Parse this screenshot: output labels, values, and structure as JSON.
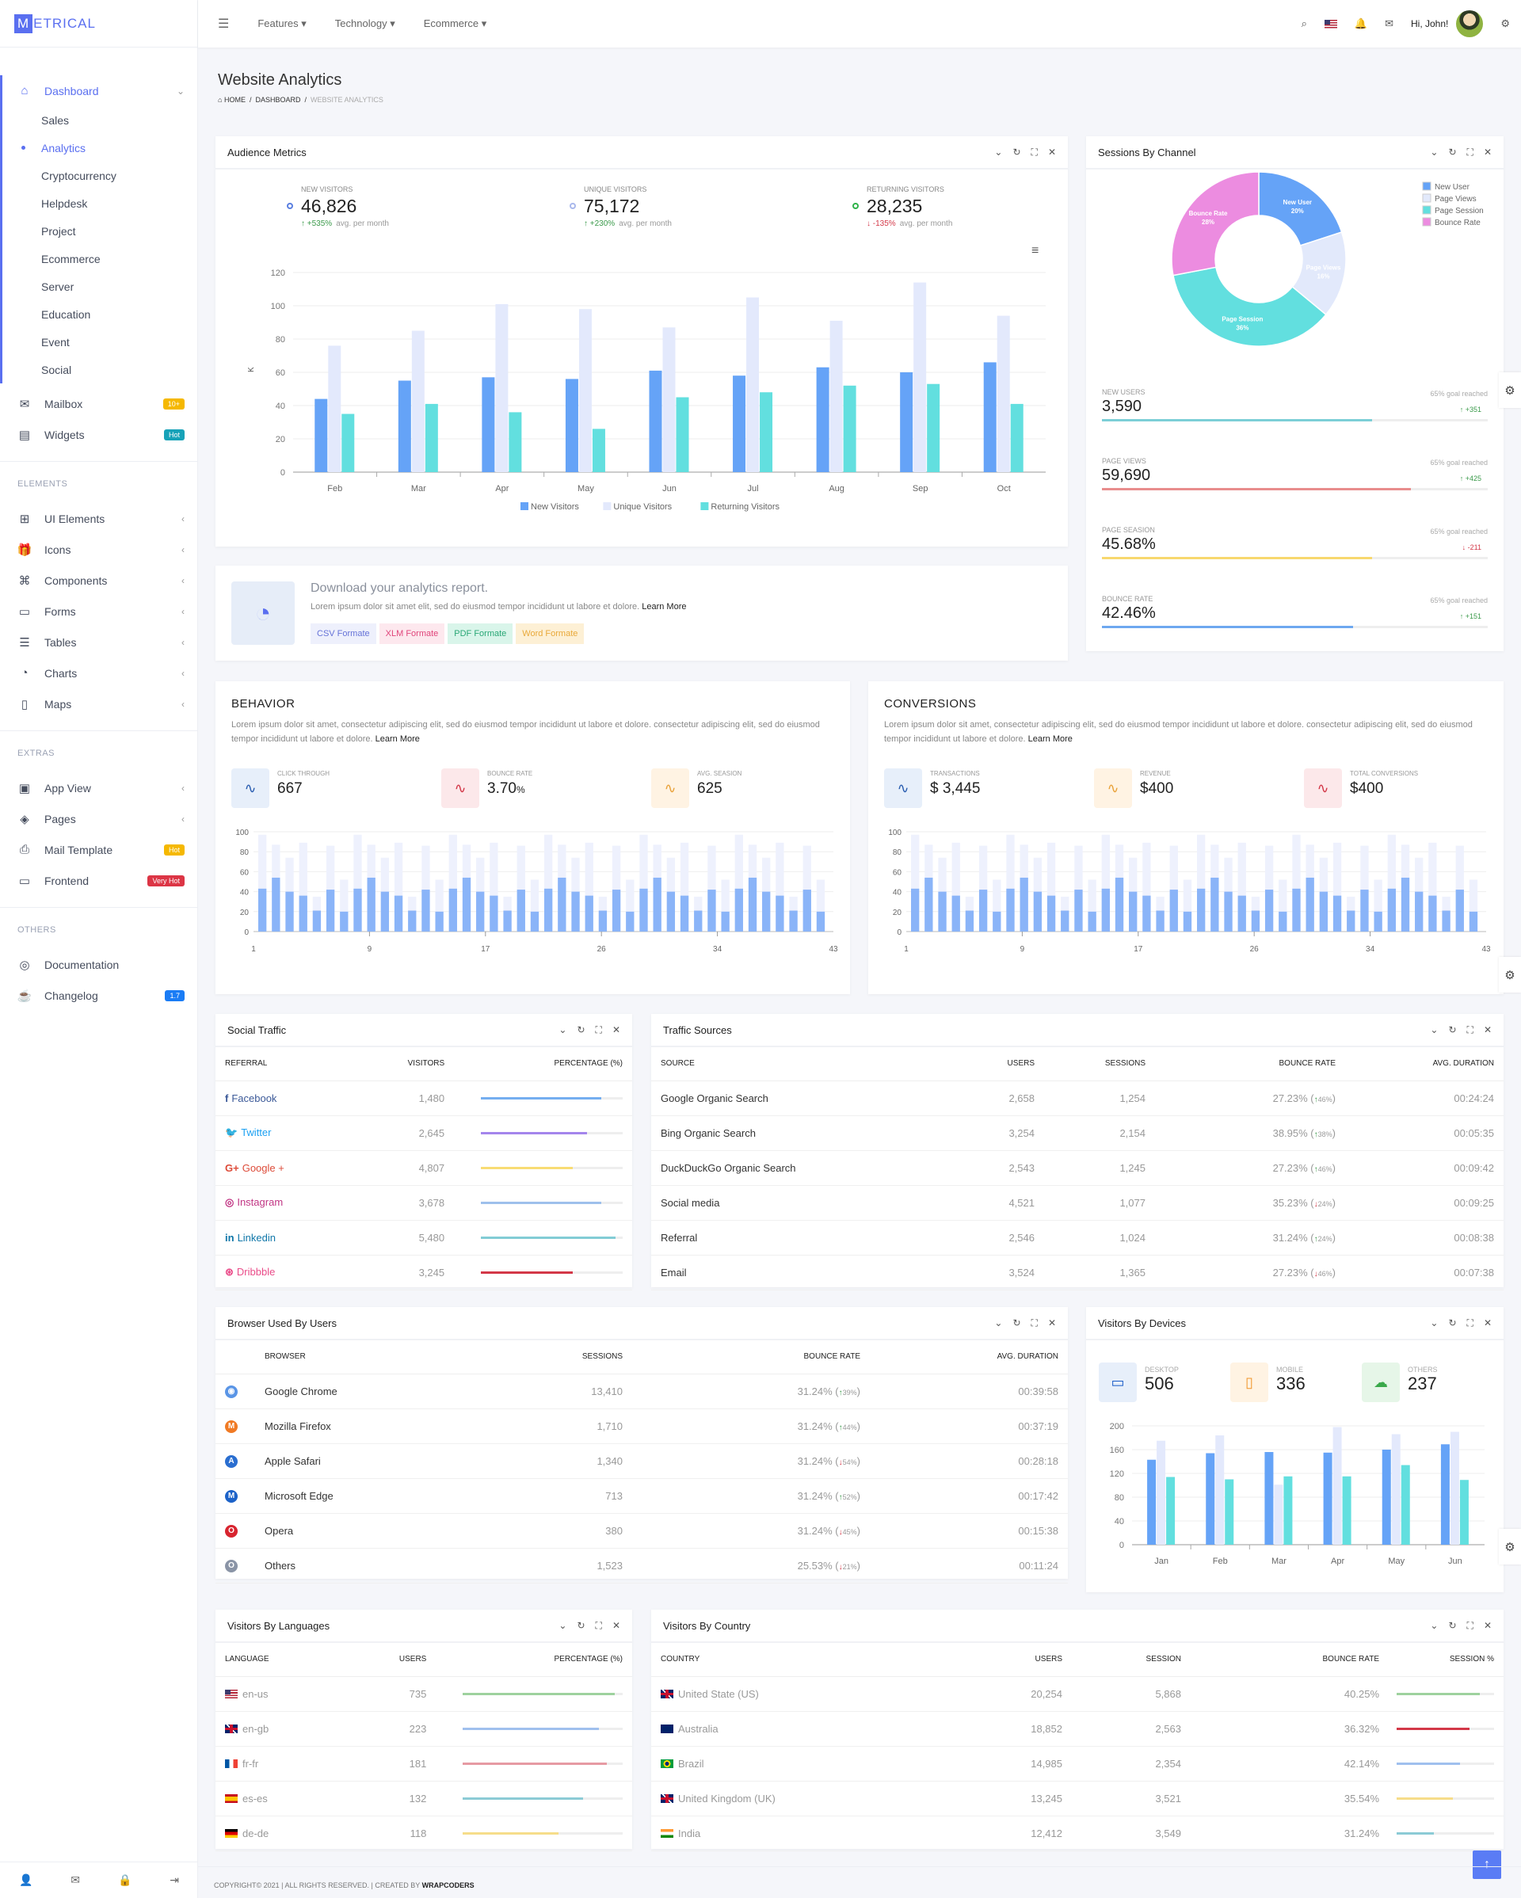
{
  "brand": {
    "logo_letter": "M",
    "logo_rest": "ETRICAL",
    "accent": "#5a6ff0"
  },
  "header": {
    "nav": [
      "Features",
      "Technology",
      "Ecommerce"
    ],
    "greeting": "Hi, John!"
  },
  "sidebar": {
    "dashboard": {
      "label": "Dashboard",
      "sub": [
        "Sales",
        "Analytics",
        "Cryptocurrency",
        "Helpdesk",
        "Project",
        "Ecommerce",
        "Server",
        "Education",
        "Event",
        "Social"
      ],
      "active_sub": 1
    },
    "top": [
      {
        "label": "Mailbox",
        "icon": "mail-icon",
        "badge": "10+",
        "badge_color": "#f5b800"
      },
      {
        "label": "Widgets",
        "icon": "layout-icon",
        "badge": "Hot",
        "badge_color": "#17a2b8"
      }
    ],
    "sections": [
      {
        "label": "ELEMENTS",
        "items": [
          {
            "label": "UI Elements",
            "icon": "grid-icon"
          },
          {
            "label": "Icons",
            "icon": "gift-icon"
          },
          {
            "label": "Components",
            "icon": "command-icon"
          },
          {
            "label": "Forms",
            "icon": "calendar-icon"
          },
          {
            "label": "Tables",
            "icon": "database-icon"
          },
          {
            "label": "Charts",
            "icon": "pie-chart-icon"
          },
          {
            "label": "Maps",
            "icon": "map-icon"
          }
        ]
      },
      {
        "label": "EXTRAS",
        "items": [
          {
            "label": "App View",
            "icon": "cpu-icon"
          },
          {
            "label": "Pages",
            "icon": "codepen-icon"
          },
          {
            "label": "Mail Template",
            "icon": "printer-icon",
            "badge": "Hot",
            "badge_color": "#f5b800"
          },
          {
            "label": "Frontend",
            "icon": "monitor-icon",
            "badge": "Very Hot",
            "badge_color": "#dc3545"
          }
        ]
      },
      {
        "label": "OTHERS",
        "items": [
          {
            "label": "Documentation",
            "icon": "life-buoy-icon"
          },
          {
            "label": "Changelog",
            "icon": "coffee-icon",
            "badge": "1.7",
            "badge_color": "#1a7cf5"
          }
        ]
      }
    ]
  },
  "page": {
    "title": "Website Analytics",
    "breadcrumb": [
      "HOME",
      "DASHBOARD",
      "WEBSITE ANALYTICS"
    ]
  },
  "audience": {
    "title": "Audience Metrics",
    "stats": [
      {
        "label": "NEW VISITORS",
        "value": "46,826",
        "change": "+535%",
        "dir": "up",
        "note": "avg. per month",
        "dot": "#5a7fe0"
      },
      {
        "label": "UNIQUE VISITORS",
        "value": "75,172",
        "change": "+230%",
        "dir": "up",
        "note": "avg. per month",
        "dot": "#a9b8ec"
      },
      {
        "label": "RETURNING VISITORS",
        "value": "28,235",
        "change": "-135%",
        "dir": "down",
        "note": "avg. per month",
        "dot": "#2fb34a"
      }
    ]
  },
  "sessions": {
    "title": "Sessions By Channel",
    "stats": [
      {
        "label": "NEW USERS",
        "value": "3,590",
        "goal": "65% goal reached",
        "change": "+351",
        "dir": "up",
        "progress": 0.7,
        "color": "#7ccfd7"
      },
      {
        "label": "PAGE VIEWS",
        "value": "59,690",
        "goal": "65% goal reached",
        "change": "+425",
        "dir": "up",
        "progress": 0.8,
        "color": "#e88d8d"
      },
      {
        "label": "PAGE SEASION",
        "value": "45.68%",
        "goal": "65% goal reached",
        "change": "-211",
        "dir": "down",
        "progress": 0.7,
        "color": "#f8d86e"
      },
      {
        "label": "BOUNCE RATE",
        "value": "42.46%",
        "goal": "65% goal reached",
        "change": "+151",
        "dir": "up",
        "progress": 0.65,
        "color": "#6ea8f0"
      }
    ]
  },
  "download": {
    "title": "Download your analytics report.",
    "text": "Lorem ipsum dolor sit amet elit, sed do eiusmod tempor incididunt ut labore et dolore.",
    "link": "Learn More",
    "buttons": [
      {
        "label": "CSV Formate",
        "bg": "#eef0fc",
        "fg": "#6673d8"
      },
      {
        "label": "XLM Formate",
        "bg": "#fde8ee",
        "fg": "#e0457b"
      },
      {
        "label": "PDF Formate",
        "bg": "#d9f5ea",
        "fg": "#2aa876"
      },
      {
        "label": "Word Formate",
        "bg": "#fdf0d5",
        "fg": "#e9a93a"
      }
    ]
  },
  "behavior": {
    "title": "BEHAVIOR",
    "text": "Lorem ipsum dolor sit amet, consectetur adipiscing elit, sed do eiusmod tempor incididunt ut labore et dolore. consectetur adipiscing elit, sed do eiusmod tempor incididunt ut labore et dolore.",
    "link": "Learn More",
    "stats": [
      {
        "label": "CLICK THROUGH",
        "value": "667",
        "bg": "#e7effa",
        "fg": "#2a5db0"
      },
      {
        "label": "BOUNCE RATE",
        "value": "3.70",
        "unit": "%",
        "bg": "#fce8ea",
        "fg": "#d33848"
      },
      {
        "label": "AVG. SEASION",
        "value": "625",
        "bg": "#fff3e3",
        "fg": "#e9a23a"
      }
    ]
  },
  "conversions": {
    "title": "CONVERSIONS",
    "text": "Lorem ipsum dolor sit amet, consectetur adipiscing elit, sed do eiusmod tempor incididunt ut labore et dolore. consectetur adipiscing elit, sed do eiusmod tempor incididunt ut labore et dolore.",
    "link": "Learn More",
    "stats": [
      {
        "label": "TRANSACTIONS",
        "value": "$ 3,445",
        "bg": "#e7effa",
        "fg": "#2a5db0"
      },
      {
        "label": "REVENUE",
        "value": "$400",
        "bg": "#fff3e3",
        "fg": "#e9a23a"
      },
      {
        "label": "TOTAL CONVERSIONS",
        "value": "$400",
        "bg": "#fce8ea",
        "fg": "#d33848"
      }
    ]
  },
  "social": {
    "title": "Social Traffic",
    "columns": [
      "REFERRAL",
      "VISITORS",
      "PERCENTAGE (%)"
    ],
    "rows": [
      {
        "name": "Facebook",
        "icon": "facebook-icon",
        "glyph": "f",
        "color": "#3b5998",
        "visitors": "1,480",
        "pct": 85,
        "bar": "#75aef0"
      },
      {
        "name": "Twitter",
        "icon": "twitter-icon",
        "glyph": "🐦",
        "color": "#1da1f2",
        "visitors": "2,645",
        "pct": 75,
        "bar": "#a485ec"
      },
      {
        "name": "Google +",
        "icon": "google-plus-icon",
        "glyph": "G+",
        "color": "#dd4b39",
        "visitors": "4,807",
        "pct": 65,
        "bar": "#f8dc74"
      },
      {
        "name": "Instagram",
        "icon": "instagram-icon",
        "glyph": "◎",
        "color": "#c13584",
        "visitors": "3,678",
        "pct": 85,
        "bar": "#9ec0ec"
      },
      {
        "name": "Linkedin",
        "icon": "linkedin-icon",
        "glyph": "in",
        "color": "#0e76a8",
        "visitors": "5,480",
        "pct": 95,
        "bar": "#82ccd5"
      },
      {
        "name": "Dribbble",
        "icon": "dribbble-icon",
        "glyph": "⊛",
        "color": "#ea4c89",
        "visitors": "3,245",
        "pct": 65,
        "bar": "#d33848"
      }
    ]
  },
  "traffic": {
    "title": "Traffic Sources",
    "columns": [
      "SOURCE",
      "USERS",
      "SESSIONS",
      "BOUNCE RATE",
      "AVG. DURATION"
    ],
    "rows": [
      {
        "source": "Google Organic Search",
        "users": "2,658",
        "sessions": "1,254",
        "bounce": "27.23%",
        "delta": "46%",
        "dir": "up",
        "duration": "00:24:24"
      },
      {
        "source": "Bing Organic Search",
        "users": "3,254",
        "sessions": "2,154",
        "bounce": "38.95%",
        "delta": "38%",
        "dir": "up",
        "duration": "00:05:35"
      },
      {
        "source": "DuckDuckGo Organic Search",
        "users": "2,543",
        "sessions": "1,245",
        "bounce": "27.23%",
        "delta": "46%",
        "dir": "up",
        "duration": "00:09:42"
      },
      {
        "source": "Social media",
        "users": "4,521",
        "sessions": "1,077",
        "bounce": "35.23%",
        "delta": "24%",
        "dir": "down",
        "duration": "00:09:25"
      },
      {
        "source": "Referral",
        "users": "2,546",
        "sessions": "1,024",
        "bounce": "31.24%",
        "delta": "24%",
        "dir": "up",
        "duration": "00:08:38"
      },
      {
        "source": "Email",
        "users": "3,524",
        "sessions": "1,365",
        "bounce": "27.23%",
        "delta": "46%",
        "dir": "down",
        "duration": "00:07:38"
      }
    ]
  },
  "browsers": {
    "title": "Browser Used By Users",
    "columns": [
      "BROWSER",
      "SESSIONS",
      "BOUNCE RATE",
      "AVG. DURATION"
    ],
    "rows": [
      {
        "name": "Google Chrome",
        "icon": "chrome-icon",
        "color": "#5a95e6",
        "sessions": "13,410",
        "bounce": "31.24%",
        "delta": "39%",
        "dir": "up",
        "duration": "00:39:58"
      },
      {
        "name": "Mozilla Firefox",
        "icon": "firefox-icon",
        "color": "#f07a24",
        "sessions": "1,710",
        "bounce": "31.24%",
        "delta": "44%",
        "dir": "up",
        "duration": "00:37:19"
      },
      {
        "name": "Apple Safari",
        "icon": "safari-icon",
        "color": "#2a6ed0",
        "sessions": "1,340",
        "bounce": "31.24%",
        "delta": "54%",
        "dir": "down",
        "duration": "00:28:18"
      },
      {
        "name": "Microsoft Edge",
        "icon": "edge-icon",
        "color": "#1c62c8",
        "sessions": "713",
        "bounce": "31.24%",
        "delta": "52%",
        "dir": "up",
        "duration": "00:17:42"
      },
      {
        "name": "Opera",
        "icon": "opera-icon",
        "color": "#d8242f",
        "sessions": "380",
        "bounce": "31.24%",
        "delta": "45%",
        "dir": "down",
        "duration": "00:15:38"
      },
      {
        "name": "Others",
        "icon": "globe-icon",
        "color": "#8a94a6",
        "sessions": "1,523",
        "bounce": "25.53%",
        "delta": "21%",
        "dir": "down",
        "duration": "00:11:24"
      }
    ]
  },
  "devices": {
    "title": "Visitors By Devices",
    "stats": [
      {
        "label": "DESKTOP",
        "value": "506",
        "icon": "monitor-icon",
        "bg": "#e7effa",
        "fg": "#1a5cc8"
      },
      {
        "label": "MOBILE",
        "value": "336",
        "icon": "smartphone-icon",
        "bg": "#fff3e3",
        "fg": "#f0952a"
      },
      {
        "label": "OTHERS",
        "value": "237",
        "icon": "upload-cloud-icon",
        "bg": "#e6f6e8",
        "fg": "#3aa94a"
      }
    ]
  },
  "languages": {
    "title": "Visitors By Languages",
    "columns": [
      "LANGUAGE",
      "USERS",
      "PERCENTAGE (%)"
    ],
    "rows": [
      {
        "lang": "en-us",
        "flag": "us",
        "users": "735",
        "pct": 95,
        "bar": "#9ed29e"
      },
      {
        "lang": "en-gb",
        "flag": "gb",
        "users": "223",
        "pct": 85,
        "bar": "#a0c0ee"
      },
      {
        "lang": "fr-fr",
        "flag": "fr",
        "users": "181",
        "pct": 90,
        "bar": "#e69aa3"
      },
      {
        "lang": "es-es",
        "flag": "es",
        "users": "132",
        "pct": 75,
        "bar": "#8ccbd6"
      },
      {
        "lang": "de-de",
        "flag": "de",
        "users": "118",
        "pct": 60,
        "bar": "#f6dd8a"
      }
    ]
  },
  "countries": {
    "title": "Visitors By Country",
    "columns": [
      "COUNTRY",
      "USERS",
      "SESSION",
      "BOUNCE RATE",
      "SESSION %"
    ],
    "rows": [
      {
        "country": "United State (US)",
        "flag": "gb",
        "users": "20,254",
        "session": "5,868",
        "bounce": "40.25%",
        "pct": 85,
        "bar": "#9ed29e"
      },
      {
        "country": "Australia",
        "flag": "au",
        "users": "18,852",
        "session": "2,563",
        "bounce": "36.32%",
        "pct": 75,
        "bar": "#d33848"
      },
      {
        "country": "Brazil",
        "flag": "br",
        "users": "14,985",
        "session": "2,354",
        "bounce": "42.14%",
        "pct": 65,
        "bar": "#a0c0ee"
      },
      {
        "country": "United Kingdom (UK)",
        "flag": "gb",
        "users": "13,245",
        "session": "3,521",
        "bounce": "35.54%",
        "pct": 58,
        "bar": "#f6dd8a"
      },
      {
        "country": "India",
        "flag": "in",
        "users": "12,412",
        "session": "3,549",
        "bounce": "31.24%",
        "pct": 38,
        "bar": "#8ccbd6"
      }
    ]
  },
  "footer": {
    "text": "COPYRIGHT© 2021 | ALL RIGHTS RESERVED. | CREATED BY",
    "brand": "WRAPCODERS"
  },
  "chart_data": [
    {
      "type": "bar",
      "ylabel": "K",
      "categories": [
        "Feb",
        "Mar",
        "Apr",
        "May",
        "Jun",
        "Jul",
        "Aug",
        "Sep",
        "Oct"
      ],
      "ylim": [
        0,
        120
      ],
      "yticks": [
        0,
        20,
        40,
        60,
        80,
        100,
        120
      ],
      "grid": true,
      "legend": "bottom",
      "series": [
        {
          "name": "New Visitors",
          "color": "#65a3f7",
          "values": [
            44,
            55,
            57,
            56,
            61,
            58,
            63,
            60,
            66
          ]
        },
        {
          "name": "Unique Visitors",
          "color": "#e3e9fc",
          "values": [
            76,
            85,
            101,
            98,
            87,
            105,
            91,
            114,
            94
          ]
        },
        {
          "name": "Returning Visitors",
          "color": "#62dfdf",
          "values": [
            35,
            41,
            36,
            26,
            45,
            48,
            52,
            53,
            41
          ]
        }
      ]
    },
    {
      "type": "pie",
      "donut": true,
      "legend": "top-right",
      "labels": [
        "New User",
        "Page Views",
        "Page Session",
        "Bounce Rate"
      ],
      "values": [
        20,
        16,
        36,
        28
      ],
      "colors": [
        "#65a3f7",
        "#e2e9fb",
        "#62dfdf",
        "#ec8ce0"
      ]
    },
    {
      "type": "bar",
      "stacked": "overlay",
      "ylim": [
        0,
        100
      ],
      "yticks": [
        0,
        20,
        40,
        60,
        80,
        100
      ],
      "xticks": [
        "1",
        "9",
        "17",
        "26",
        "34",
        "43"
      ],
      "series": [
        {
          "color": "#8ab4f8",
          "values": [
            43,
            54,
            40,
            36,
            21,
            42,
            20,
            43,
            54,
            40,
            36,
            21,
            42,
            20,
            43,
            54,
            40,
            36,
            21,
            42,
            20,
            43,
            54,
            40,
            36,
            21,
            42,
            20,
            43,
            54,
            40,
            36,
            21,
            42,
            20,
            43,
            54,
            40,
            36,
            21,
            42,
            20
          ]
        },
        {
          "color": "#eef1fd",
          "values": [
            97,
            87,
            74,
            89,
            35,
            86,
            52,
            97,
            87,
            74,
            89,
            35,
            86,
            52,
            97,
            87,
            74,
            89,
            35,
            86,
            52,
            97,
            87,
            74,
            89,
            35,
            86,
            52,
            97,
            87,
            74,
            89,
            35,
            86,
            52,
            97,
            87,
            74,
            89,
            35,
            86,
            52
          ]
        }
      ]
    },
    {
      "type": "bar",
      "stacked": "overlay",
      "ylim": [
        0,
        100
      ],
      "yticks": [
        0,
        20,
        40,
        60,
        80,
        100
      ],
      "xticks": [
        "1",
        "9",
        "17",
        "26",
        "34",
        "43"
      ],
      "series": [
        {
          "color": "#8ab4f8",
          "values": [
            43,
            54,
            40,
            36,
            21,
            42,
            20,
            43,
            54,
            40,
            36,
            21,
            42,
            20,
            43,
            54,
            40,
            36,
            21,
            42,
            20,
            43,
            54,
            40,
            36,
            21,
            42,
            20,
            43,
            54,
            40,
            36,
            21,
            42,
            20,
            43,
            54,
            40,
            36,
            21,
            42,
            20
          ]
        },
        {
          "color": "#eef1fd",
          "values": [
            97,
            87,
            74,
            89,
            35,
            86,
            52,
            97,
            87,
            74,
            89,
            35,
            86,
            52,
            97,
            87,
            74,
            89,
            35,
            86,
            52,
            97,
            87,
            74,
            89,
            35,
            86,
            52,
            97,
            87,
            74,
            89,
            35,
            86,
            52,
            97,
            87,
            74,
            89,
            35,
            86,
            52
          ]
        }
      ]
    },
    {
      "type": "bar",
      "categories": [
        "Jan",
        "Feb",
        "Mar",
        "Apr",
        "May",
        "Jun"
      ],
      "ylim": [
        0,
        200
      ],
      "yticks": [
        0,
        40,
        80,
        120,
        160,
        200
      ],
      "grid": true,
      "series": [
        {
          "color": "#65a3f7",
          "values": [
            143,
            154,
            156,
            155,
            160,
            169
          ]
        },
        {
          "color": "#e3e9fc",
          "values": [
            175,
            184,
            101,
            198,
            186,
            190
          ]
        },
        {
          "color": "#62dfdf",
          "values": [
            114,
            110,
            115,
            115,
            134,
            109
          ]
        }
      ]
    }
  ]
}
